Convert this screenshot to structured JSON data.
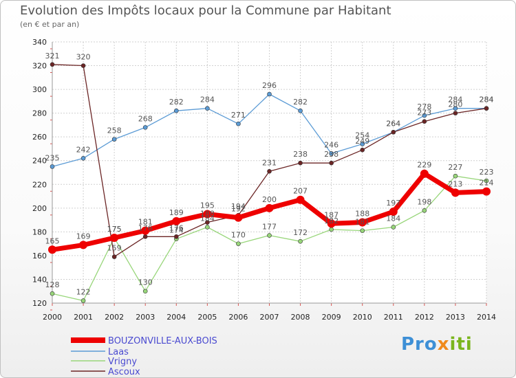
{
  "chart_data": {
    "type": "line",
    "title": "Evolution des Impôts locaux pour la Commune par Habitant",
    "subtitle": "(en € et par an)",
    "categories": [
      "2000",
      "2001",
      "2002",
      "2003",
      "2004",
      "2005",
      "2006",
      "2007",
      "2008",
      "2009",
      "2010",
      "2011",
      "2012",
      "2013",
      "2014"
    ],
    "ylim": [
      120,
      340
    ],
    "yticks": [
      120,
      140,
      160,
      180,
      200,
      220,
      240,
      260,
      280,
      300,
      320,
      340
    ],
    "grid": true,
    "series": [
      {
        "name": "BOUZONVILLE-AUX-BOIS",
        "color": "#ee0000",
        "values": [
          165,
          169,
          175,
          181,
          189,
          195,
          192,
          200,
          207,
          187,
          188,
          197,
          229,
          213,
          214
        ]
      },
      {
        "name": "Laas",
        "color": "#5b9bd5",
        "values": [
          235,
          242,
          258,
          268,
          282,
          284,
          271,
          296,
          282,
          246,
          254,
          264,
          278,
          284,
          284
        ]
      },
      {
        "name": "Vrigny",
        "color": "#98d67a",
        "values": [
          128,
          122,
          175,
          130,
          174,
          184,
          170,
          177,
          172,
          182,
          181,
          184,
          198,
          227,
          223
        ]
      },
      {
        "name": "Ascoux",
        "color": "#6b2525",
        "values": [
          321,
          320,
          159,
          176,
          176,
          188,
          194,
          231,
          238,
          238,
          249,
          264,
          273,
          280,
          284
        ]
      }
    ],
    "data_labels": {
      "BOUZONVILLE-AUX-BOIS": [
        "165",
        "169",
        "175",
        "181",
        "189",
        "195",
        "192",
        "200",
        "207",
        "187",
        "188",
        "197",
        "229",
        "213",
        "214"
      ],
      "Laas": [
        "235",
        "242",
        "258",
        "268",
        "282",
        "284",
        "271",
        "296",
        "282",
        "246",
        "254",
        "264",
        "278",
        "284",
        "284"
      ],
      "Vrigny": [
        "128",
        "122",
        "175",
        "130",
        "174",
        "184",
        "170",
        "177",
        "172",
        "182",
        "181",
        "184",
        "198",
        "227",
        "223"
      ],
      "Ascoux": [
        "321",
        "320",
        "159",
        "176",
        "176",
        "188",
        "194",
        "231",
        "238",
        "238",
        "249",
        "264",
        "273",
        "280",
        "284"
      ]
    },
    "legend": [
      "BOUZONVILLE-AUX-BOIS",
      "Laas",
      "Vrigny",
      "Ascoux"
    ],
    "legend_position": "bottom-left"
  },
  "logo": {
    "part1": "Pro",
    "part2": "x",
    "part3": "iti"
  }
}
